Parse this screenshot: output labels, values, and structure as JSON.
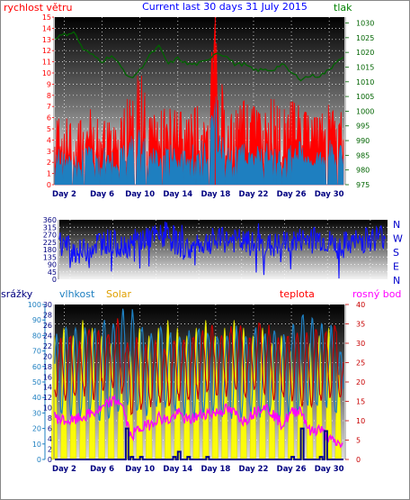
{
  "title": "Current last 30 days 31 July 2015",
  "colors": {
    "wind": "#ff0000",
    "wind_gust_area": "#1e7fc0",
    "pressure": "#006400",
    "direction": "#1010ff",
    "rain": "#00008b",
    "humidity": "#1e7fc0",
    "solar": "#ffff00",
    "temperature": "#c80000",
    "dewpoint": "#ff00ff",
    "panel_bg_top": "#000000",
    "panel_bg_bottom": "#ffffff",
    "grid": "#ffffff"
  },
  "x_ticks": [
    "Day 2",
    "Day 6",
    "Day 10",
    "Day 14",
    "Day 18",
    "Day 22",
    "Day 26",
    "Day 30"
  ],
  "panel1": {
    "left_label": "rychlost větru",
    "right_label": "tlak",
    "left_ticks": [
      "0",
      "1",
      "2",
      "3",
      "4",
      "5",
      "6",
      "7",
      "8",
      "9",
      "10",
      "11",
      "12",
      "13",
      "14",
      "15"
    ],
    "right_ticks": [
      "975",
      "980",
      "985",
      "990",
      "995",
      "1000",
      "1005",
      "1010",
      "1015",
      "1020",
      "1025",
      "1030"
    ]
  },
  "panel2": {
    "left_ticks": [
      "0",
      "45",
      "90",
      "135",
      "180",
      "225",
      "270",
      "315",
      "360"
    ],
    "right_ticks": [
      "N",
      "W",
      "S",
      "E",
      "N"
    ]
  },
  "panel3": {
    "labels": {
      "rain": "srážky",
      "humidity": "vlhkost",
      "solar": "Solar",
      "temperature": "teplota",
      "dewpoint": "rosný bod"
    },
    "rain_ticks": [
      "0",
      "2",
      "4",
      "6",
      "8",
      "10",
      "12",
      "14",
      "16",
      "18",
      "20",
      "22",
      "24",
      "26",
      "28",
      "30"
    ],
    "humidity_ticks": [
      "0",
      "10",
      "20",
      "30",
      "40",
      "50",
      "60",
      "70",
      "80",
      "90",
      "100"
    ],
    "temp_ticks": [
      "0",
      "5",
      "10",
      "15",
      "20",
      "25",
      "30",
      "35",
      "40"
    ]
  },
  "chart_data": [
    {
      "type": "line",
      "title": "Current last 30 days 31 July 2015",
      "xlabel": "",
      "x_ticks": [
        "Day 2",
        "Day 6",
        "Day 10",
        "Day 14",
        "Day 18",
        "Day 22",
        "Day 26",
        "Day 30"
      ],
      "ylabel": "rychlost větru",
      "ylim": [
        0,
        15
      ],
      "y2label": "tlak",
      "y2lim": [
        975,
        1032
      ],
      "series": [
        {
          "name": "rychlost větru",
          "axis": "left",
          "days": [
            1,
            2,
            3,
            4,
            5,
            6,
            7,
            8,
            9,
            10,
            11,
            12,
            13,
            14,
            15,
            16,
            17,
            18,
            19,
            20,
            21,
            22,
            23,
            24,
            25,
            26,
            27,
            28,
            29,
            30,
            31
          ],
          "max": [
            5.5,
            6.5,
            5.0,
            6.0,
            7.0,
            6.5,
            5.5,
            6.0,
            8.5,
            10.5,
            6.0,
            6.5,
            7.0,
            6.5,
            6.5,
            7.0,
            7.5,
            15.0,
            6.0,
            6.5,
            7.5,
            7.0,
            6.0,
            8.0,
            6.5,
            7.5,
            7.0,
            6.0,
            6.0,
            7.5,
            6.5
          ]
        },
        {
          "name": "tlak",
          "axis": "right",
          "days": [
            1,
            2,
            3,
            4,
            5,
            6,
            7,
            8,
            9,
            10,
            11,
            12,
            13,
            14,
            15,
            16,
            17,
            18,
            19,
            20,
            21,
            22,
            23,
            24,
            25,
            26,
            27,
            28,
            29,
            30,
            31
          ],
          "values": [
            1025,
            1026,
            1027,
            1021,
            1019,
            1017,
            1019,
            1015,
            1011,
            1014,
            1019,
            1022,
            1016,
            1018,
            1016,
            1016,
            1017,
            1020,
            1019,
            1016,
            1016,
            1014,
            1014,
            1014,
            1016,
            1013,
            1011,
            1012,
            1012,
            1014,
            1018
          ]
        }
      ]
    },
    {
      "type": "line",
      "title": "",
      "x_ticks": [
        "Day 2",
        "Day 6",
        "Day 10",
        "Day 14",
        "Day 18",
        "Day 22",
        "Day 26",
        "Day 30"
      ],
      "ylim": [
        0,
        360
      ],
      "y_ticks": [
        0,
        45,
        90,
        135,
        180,
        225,
        270,
        315,
        360
      ],
      "right_ticks": [
        "N",
        "W",
        "S",
        "E",
        "N"
      ],
      "series": [
        {
          "name": "wind direction",
          "days": [
            1,
            3,
            5,
            7,
            9,
            11,
            13,
            15,
            17,
            19,
            21,
            23,
            25,
            27,
            29,
            31
          ],
          "values": [
            220,
            160,
            240,
            200,
            250,
            260,
            180,
            230,
            240,
            210,
            200,
            230,
            250,
            200,
            230,
            260
          ]
        }
      ]
    },
    {
      "type": "line",
      "title": "",
      "x_ticks": [
        "Day 2",
        "Day 6",
        "Day 10",
        "Day 14",
        "Day 18",
        "Day 22",
        "Day 26",
        "Day 30"
      ],
      "series": [
        {
          "name": "srážky",
          "axis": "rain",
          "ylim": [
            0,
            30
          ],
          "days": [
            8.5,
            9,
            10,
            13.5,
            14,
            15,
            17,
            26,
            27,
            29,
            29.5
          ],
          "values": [
            6,
            0.5,
            0.5,
            0.5,
            1.5,
            0.5,
            0.5,
            0.5,
            6,
            0.5,
            5.5
          ]
        },
        {
          "name": "vlhkost",
          "axis": "humidity",
          "ylim": [
            0,
            100
          ],
          "days": [
            1,
            2,
            3,
            4,
            5,
            6,
            7,
            8,
            9,
            10,
            11,
            12,
            13,
            14,
            15,
            16,
            17,
            18,
            19,
            20,
            21,
            22,
            23,
            24,
            25,
            26,
            27,
            28,
            29,
            30,
            31
          ],
          "max": [
            80,
            85,
            85,
            85,
            85,
            90,
            88,
            95,
            95,
            85,
            80,
            85,
            82,
            80,
            82,
            85,
            83,
            80,
            82,
            85,
            80,
            85,
            82,
            85,
            80,
            86,
            95,
            90,
            88,
            85,
            70
          ],
          "min": [
            30,
            30,
            28,
            30,
            25,
            25,
            30,
            35,
            30,
            30,
            35,
            35,
            32,
            30,
            28,
            30,
            30,
            28,
            28,
            25,
            30,
            28,
            30,
            25,
            30,
            30,
            35,
            35,
            35,
            30,
            30
          ]
        },
        {
          "name": "Solar",
          "axis": "solar",
          "days": [
            1,
            2,
            3,
            4,
            5,
            6,
            7,
            8,
            9,
            10,
            11,
            12,
            13,
            14,
            15,
            16,
            17,
            18,
            19,
            20,
            21,
            22,
            23,
            24,
            25,
            26,
            27,
            28,
            29,
            30,
            31
          ],
          "peak_relative": [
            0.8,
            0.85,
            0.8,
            0.9,
            0.85,
            0.8,
            0.75,
            0.6,
            0.7,
            0.85,
            0.8,
            0.85,
            0.9,
            0.85,
            0.8,
            0.85,
            0.9,
            0.8,
            0.85,
            0.9,
            0.85,
            0.8,
            0.85,
            0.75,
            0.8,
            0.7,
            0.65,
            0.75,
            0.8,
            0.85,
            0.6
          ]
        },
        {
          "name": "teplota",
          "axis": "temperature",
          "ylim": [
            0,
            40
          ],
          "days": [
            1,
            2,
            3,
            4,
            5,
            6,
            7,
            8,
            9,
            10,
            11,
            12,
            13,
            14,
            15,
            16,
            17,
            18,
            19,
            20,
            21,
            22,
            23,
            24,
            25,
            26,
            27,
            28,
            29,
            30,
            31
          ],
          "max": [
            31,
            32,
            30,
            34,
            33,
            33,
            36,
            30,
            31,
            29,
            30,
            28,
            31,
            30,
            32,
            33,
            34,
            33,
            34,
            35,
            32,
            36,
            34,
            31,
            32,
            33,
            32,
            34,
            33,
            35,
            27
          ],
          "min": [
            16,
            15,
            16,
            17,
            16,
            18,
            19,
            17,
            12,
            13,
            14,
            15,
            14,
            16,
            15,
            16,
            17,
            16,
            17,
            18,
            16,
            18,
            17,
            16,
            16,
            15,
            13,
            14,
            15,
            16,
            16
          ]
        },
        {
          "name": "rosný bod",
          "axis": "temperature",
          "ylim": [
            0,
            40
          ],
          "days": [
            1,
            2,
            3,
            4,
            5,
            6,
            7,
            8,
            9,
            10,
            11,
            12,
            13,
            14,
            15,
            16,
            17,
            18,
            19,
            20,
            21,
            22,
            23,
            24,
            25,
            26,
            27,
            28,
            29,
            30,
            31
          ],
          "values": [
            11,
            10,
            10,
            11,
            12,
            13,
            15,
            15,
            6,
            8,
            9,
            11,
            10,
            12,
            10,
            11,
            12,
            12,
            13,
            12,
            10,
            12,
            14,
            12,
            9,
            12,
            13,
            7,
            8,
            5,
            4
          ]
        }
      ]
    }
  ]
}
